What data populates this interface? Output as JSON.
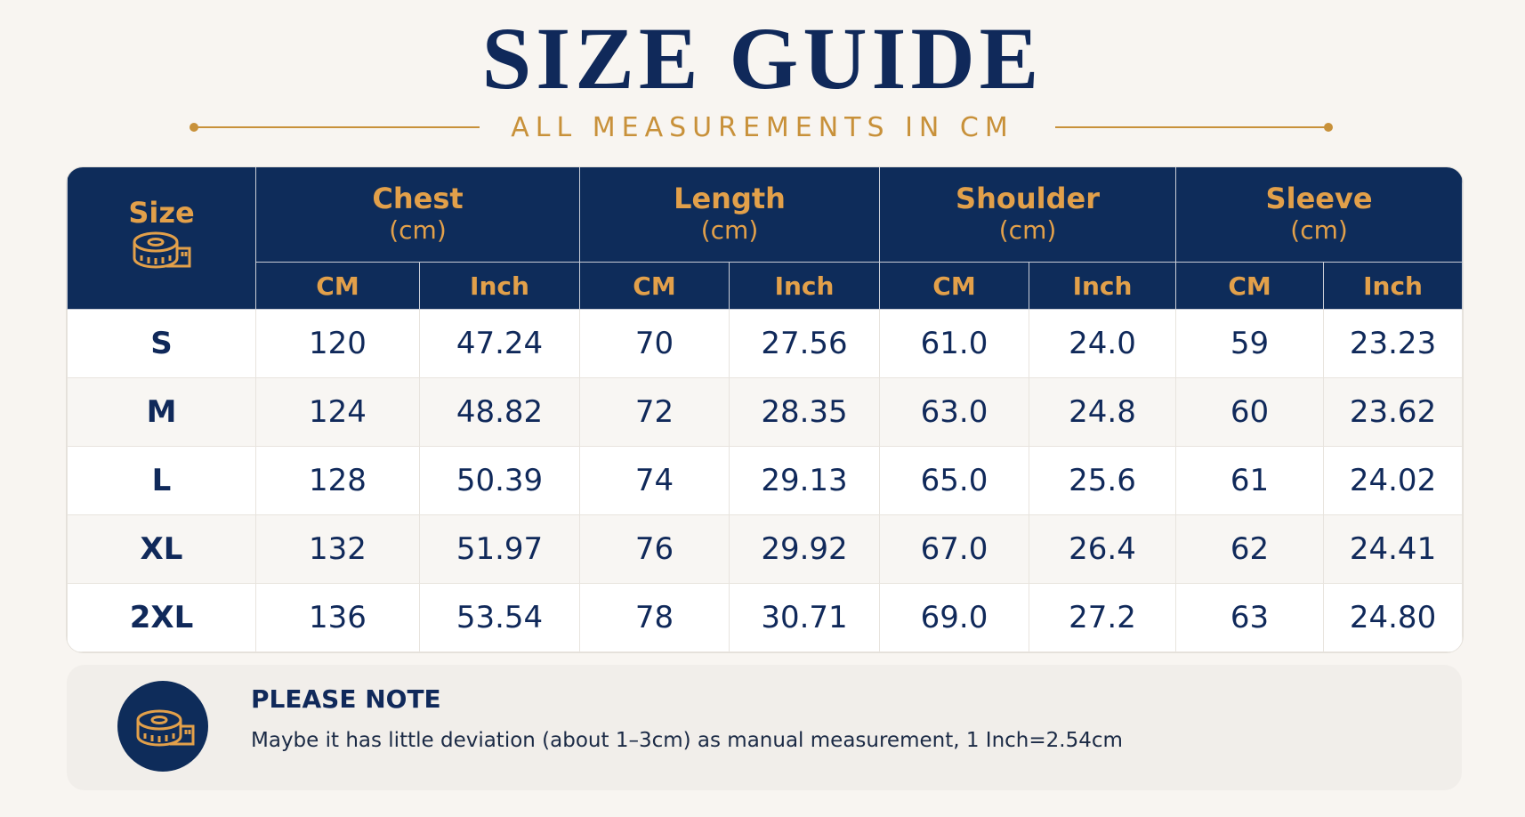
{
  "header": {
    "title": "SIZE GUIDE",
    "subtitle": "ALL MEASUREMENTS IN CM"
  },
  "table": {
    "size_label": "Size",
    "groups": [
      {
        "name": "Chest",
        "unit": "(cm)",
        "columns": [
          "CM",
          "Inch"
        ]
      },
      {
        "name": "Length",
        "unit": "(cm)",
        "columns": [
          "CM",
          "Inch"
        ]
      },
      {
        "name": "Shoulder",
        "unit": "(cm)",
        "columns": [
          "CM",
          "Inch"
        ]
      },
      {
        "name": "Sleeve",
        "unit": "(cm)",
        "columns": [
          "CM",
          "Inch"
        ]
      }
    ],
    "rows": [
      [
        "S",
        "120",
        "47.24",
        "70",
        "27.56",
        "61.0",
        "24.0",
        "59",
        "23.23"
      ],
      [
        "M",
        "124",
        "48.82",
        "72",
        "28.35",
        "63.0",
        "24.8",
        "60",
        "23.62"
      ],
      [
        "L",
        "128",
        "50.39",
        "74",
        "29.13",
        "65.0",
        "25.6",
        "61",
        "24.02"
      ],
      [
        "XL",
        "132",
        "51.97",
        "76",
        "29.92",
        "67.0",
        "26.4",
        "62",
        "24.41"
      ],
      [
        "2XL",
        "136",
        "53.54",
        "78",
        "30.71",
        "69.0",
        "27.2",
        "63",
        "24.80"
      ]
    ]
  },
  "note": {
    "title": "PLEASE NOTE",
    "text": "Maybe it has little deviation (about 1–3cm) as manual measurement, 1 Inch=2.54cm"
  }
}
